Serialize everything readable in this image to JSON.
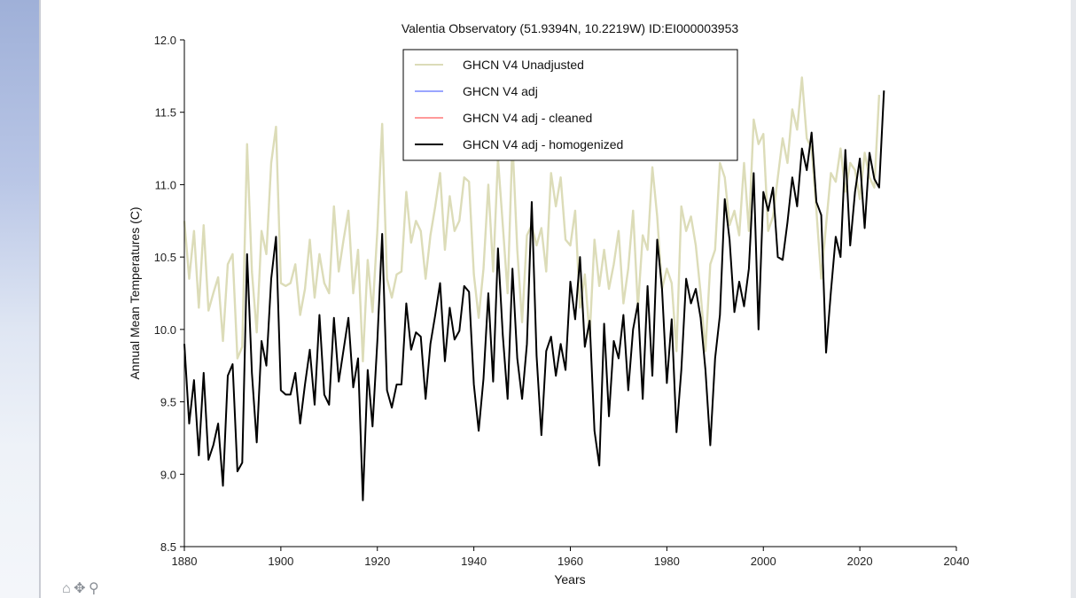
{
  "toolbar": {
    "icons": [
      "home-icon",
      "move-icon",
      "zoom-icon"
    ],
    "home_glyph": "⌂",
    "move_glyph": "✥",
    "zoom_glyph": "⚲"
  },
  "chart_data": {
    "type": "line",
    "title": "Valentia Observatory (51.9394N, 10.2219W) ID:EI000003953",
    "xlabel": "Years",
    "ylabel": "Annual Mean Temperatures (C)",
    "xlim": [
      1880,
      2040
    ],
    "ylim": [
      8.5,
      12.0
    ],
    "xticks": [
      1880,
      1900,
      1920,
      1940,
      1960,
      1980,
      2000,
      2020,
      2040
    ],
    "yticks": [
      "8.5",
      "9.0",
      "9.5",
      "10.0",
      "10.5",
      "11.0",
      "11.5",
      "12.0"
    ],
    "grid": false,
    "legend_position": "top-center",
    "x_start": 1880,
    "series": [
      {
        "name": "GHCN V4 Unadjusted",
        "color": "#dcdcb8",
        "values": [
          10.75,
          10.35,
          10.68,
          10.15,
          10.72,
          10.13,
          10.25,
          10.36,
          9.92,
          10.45,
          10.52,
          9.8,
          9.88,
          11.28,
          10.4,
          9.98,
          10.68,
          10.52,
          11.15,
          11.4,
          10.32,
          10.3,
          10.32,
          10.45,
          10.1,
          10.28,
          10.62,
          10.22,
          10.52,
          10.32,
          10.25,
          10.85,
          10.4,
          10.62,
          10.82,
          10.25,
          10.55,
          9.78,
          10.48,
          10.12,
          10.68,
          11.42,
          10.35,
          10.22,
          10.38,
          10.4,
          10.95,
          10.6,
          10.75,
          10.68,
          10.35,
          10.65,
          10.85,
          11.08,
          10.55,
          10.92,
          10.68,
          10.75,
          11.05,
          11.02,
          10.38,
          10.08,
          10.42,
          11.0,
          10.4,
          11.18,
          10.72,
          10.25,
          11.3,
          10.55,
          10.05,
          10.65,
          10.72,
          10.58,
          10.7,
          10.4,
          11.08,
          10.85,
          11.05,
          10.62,
          10.58,
          10.82,
          10.15,
          10.38,
          9.95,
          10.62,
          10.3,
          10.55,
          10.28,
          10.45,
          10.68,
          10.18,
          10.42,
          10.82,
          10.15,
          10.65,
          10.55,
          11.12,
          10.78,
          10.28,
          10.42,
          10.32,
          9.85,
          10.85,
          10.68,
          10.78,
          10.58,
          10.25,
          9.85,
          10.45,
          10.55,
          11.15,
          11.05,
          10.72,
          10.82,
          10.65,
          11.15,
          10.68,
          11.45,
          11.28,
          11.35,
          10.68,
          10.78,
          11.05,
          11.32,
          11.15,
          11.52,
          11.38,
          11.74,
          11.32,
          11.25,
          10.82,
          10.35,
          10.72,
          11.08,
          11.02,
          11.25,
          10.95,
          11.15,
          11.1,
          10.9,
          11.22,
          11.05,
          10.98,
          11.62
        ],
        "note_first_year": 1880
      },
      {
        "name": "GHCN V4 adj",
        "color": "#9aa6ff",
        "values": []
      },
      {
        "name": "GHCN V4 adj - cleaned",
        "color": "#ff9a9a",
        "values": []
      },
      {
        "name": "GHCN V4 adj - homogenized",
        "color": "#000000",
        "values": [
          9.9,
          9.35,
          9.65,
          9.13,
          9.7,
          9.1,
          9.2,
          9.35,
          8.92,
          9.68,
          9.76,
          9.02,
          9.08,
          10.52,
          9.7,
          9.22,
          9.92,
          9.75,
          10.35,
          10.64,
          9.58,
          9.55,
          9.55,
          9.7,
          9.35,
          9.62,
          9.86,
          9.48,
          10.1,
          9.55,
          9.48,
          10.08,
          9.64,
          9.86,
          10.08,
          9.6,
          9.8,
          8.82,
          9.72,
          9.33,
          9.92,
          10.66,
          9.58,
          9.46,
          9.62,
          9.62,
          10.18,
          9.86,
          9.98,
          9.95,
          9.52,
          9.9,
          10.1,
          10.32,
          9.78,
          10.15,
          9.93,
          9.99,
          10.3,
          10.26,
          9.62,
          9.3,
          9.66,
          10.25,
          9.64,
          10.56,
          9.96,
          9.52,
          10.42,
          9.8,
          9.52,
          9.9,
          10.88,
          9.82,
          9.27,
          9.85,
          9.95,
          9.68,
          9.9,
          9.72,
          10.33,
          10.07,
          10.5,
          9.88,
          10.06,
          9.3,
          9.06,
          10.04,
          9.4,
          9.92,
          9.8,
          10.1,
          9.58,
          10.0,
          10.18,
          9.52,
          10.3,
          9.68,
          10.62,
          10.28,
          9.63,
          10.07,
          9.29,
          9.72,
          10.35,
          10.18,
          10.28,
          10.08,
          9.72,
          9.2,
          9.8,
          10.1,
          10.9,
          10.62,
          10.12,
          10.33,
          10.16,
          10.42,
          11.08,
          10.0,
          10.95,
          10.82,
          10.98,
          10.5,
          10.48,
          10.74,
          11.05,
          10.85,
          11.25,
          11.1,
          11.36,
          10.88,
          10.79,
          9.84,
          10.26,
          10.64,
          10.5,
          11.24,
          10.58,
          10.95,
          11.18,
          10.7,
          11.22,
          11.04,
          10.98,
          11.65
        ]
      }
    ]
  }
}
